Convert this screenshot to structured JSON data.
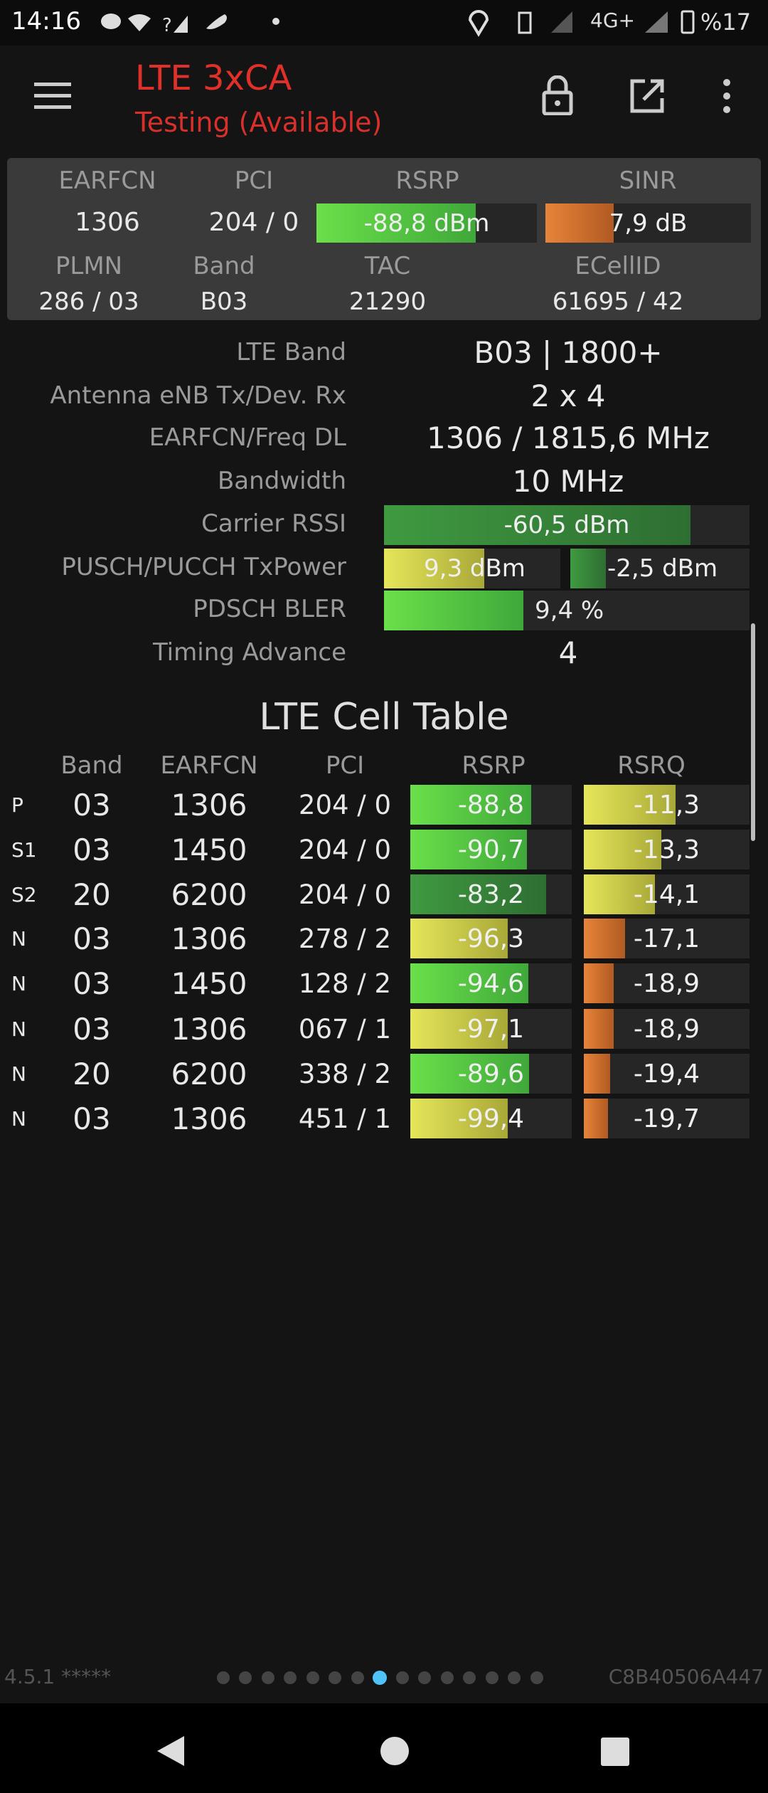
{
  "status_bar": {
    "time": "14:16",
    "network": "4G+",
    "battery": "%17"
  },
  "app_bar": {
    "title": "LTE 3xCA",
    "subtitle": "Testing (Available)"
  },
  "summary": {
    "headers": [
      "EARFCN",
      "PCI",
      "RSRP",
      "SINR"
    ],
    "values": [
      "1306",
      "204 / 0",
      "-88,8 dBm",
      "7,9 dB"
    ],
    "headers2": [
      "PLMN",
      "Band",
      "TAC",
      "ECellID"
    ],
    "values2": [
      "286 / 03",
      "B03",
      "21290",
      "61695 / 42"
    ]
  },
  "details": [
    {
      "label": "LTE Band",
      "values": [
        "B03 | 1800+"
      ]
    },
    {
      "label": "Antenna eNB Tx/Dev. Rx",
      "values": [
        "2 x 4"
      ]
    },
    {
      "label": "EARFCN/Freq DL",
      "values": [
        "1306 / 1815,6 MHz"
      ]
    },
    {
      "label": "Bandwidth",
      "values": [
        "10 MHz"
      ]
    },
    {
      "label": "Carrier RSSI",
      "values": [
        "-60,5 dBm"
      ]
    },
    {
      "label": "PUSCH/PUCCH TxPower",
      "values": [
        "9,3 dBm",
        "-2,5 dBm"
      ]
    },
    {
      "label": "PDSCH BLER",
      "values": [
        "9,4 %"
      ]
    },
    {
      "label": "Timing Advance",
      "values": [
        "4"
      ]
    }
  ],
  "cell_table": {
    "title": "LTE Cell Table",
    "columns": [
      "Band",
      "EARFCN",
      "PCI",
      "RSRP",
      "RSRQ"
    ],
    "rows": [
      [
        "P",
        "03",
        "1306",
        "204 / 0",
        "-88,8",
        "-11,3"
      ],
      [
        "S1",
        "03",
        "1450",
        "204 / 0",
        "-90,7",
        "-13,3"
      ],
      [
        "S2",
        "20",
        "6200",
        "204 / 0",
        "-83,2",
        "-14,1"
      ],
      [
        "N",
        "03",
        "1306",
        "278 / 2",
        "-96,3",
        "-17,1"
      ],
      [
        "N",
        "03",
        "1450",
        "128 / 2",
        "-94,6",
        "-18,9"
      ],
      [
        "N",
        "03",
        "1306",
        "067 / 1",
        "-97,1",
        "-18,9"
      ],
      [
        "N",
        "20",
        "6200",
        "338 / 2",
        "-89,6",
        "-19,4"
      ],
      [
        "N",
        "03",
        "1306",
        "451 / 1",
        "-99,4",
        "-19,7"
      ]
    ]
  },
  "footer": {
    "version": "4.5.1 *****",
    "device_id": "C8B40506A447"
  }
}
